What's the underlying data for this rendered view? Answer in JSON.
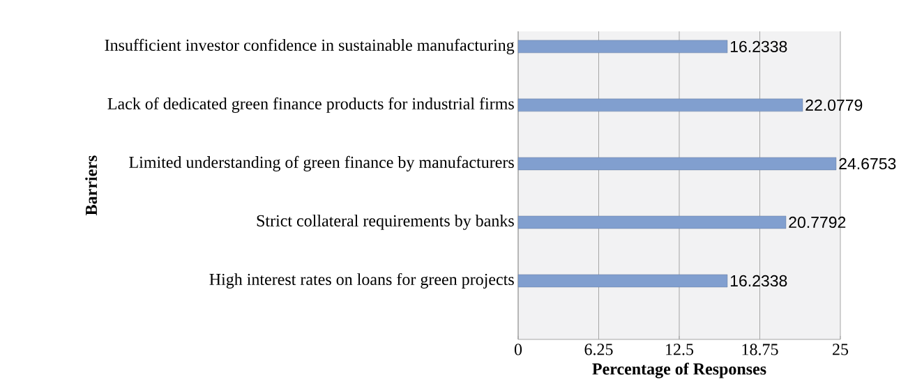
{
  "chart_data": {
    "type": "bar",
    "orientation": "horizontal",
    "xlabel": "Percentage of Responses",
    "ylabel": "Barriers",
    "categories": [
      "Insufficient investor confidence in sustainable manufacturing",
      "Lack of dedicated green finance products for industrial firms",
      "Limited understanding of green finance by manufacturers",
      "Strict collateral requirements by banks",
      "High interest rates on loans for green projects"
    ],
    "values": [
      16.2338,
      22.0779,
      24.6753,
      20.7792,
      16.2338
    ],
    "color": "#819fcf",
    "xlim": [
      0,
      25
    ],
    "xticks": [
      0,
      6.25,
      12.5,
      18.75,
      25
    ],
    "grid": "x",
    "data_labels": true
  }
}
